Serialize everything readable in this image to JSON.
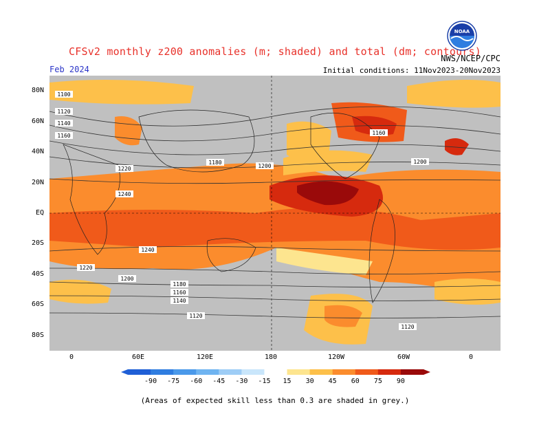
{
  "header": {
    "title": "CFSv2 monthly z200 anomalies (m; shaded) and total (dm; contours)",
    "month": "Feb 2024",
    "agency": "NWS/NCEP/CPC",
    "initial_conditions": "Initial conditions: 11Nov2023-20Nov2023",
    "logo_text": "NOAA"
  },
  "axes": {
    "lat_labels": [
      "80N",
      "60N",
      "40N",
      "20N",
      "EQ",
      "20S",
      "40S",
      "60S",
      "80S"
    ],
    "lon_labels": [
      "0",
      "60E",
      "120E",
      "180",
      "120W",
      "60W",
      "0"
    ]
  },
  "contour_labels": [
    "1100",
    "1120",
    "1140",
    "1160",
    "1180",
    "1200",
    "1220",
    "1240"
  ],
  "colorbar": {
    "ticks": [
      "-90",
      "-75",
      "-60",
      "-45",
      "-30",
      "-15",
      "15",
      "30",
      "45",
      "60",
      "75",
      "90"
    ],
    "colors": [
      "#1f5fd6",
      "#2f7de0",
      "#4a99ea",
      "#6fb4f1",
      "#9ecdf6",
      "#c9e6fb",
      "#ffffff",
      "#fde58f",
      "#fdc04a",
      "#fb8c2d",
      "#f05a1a",
      "#d62a0e",
      "#9a0a0a"
    ]
  },
  "colors": {
    "grey_mask": "#c0c0c0",
    "title": "#e8312a",
    "month": "#2a34c8"
  },
  "footnote": "(Areas of expected skill less than 0.3 are shaded in grey.)"
}
